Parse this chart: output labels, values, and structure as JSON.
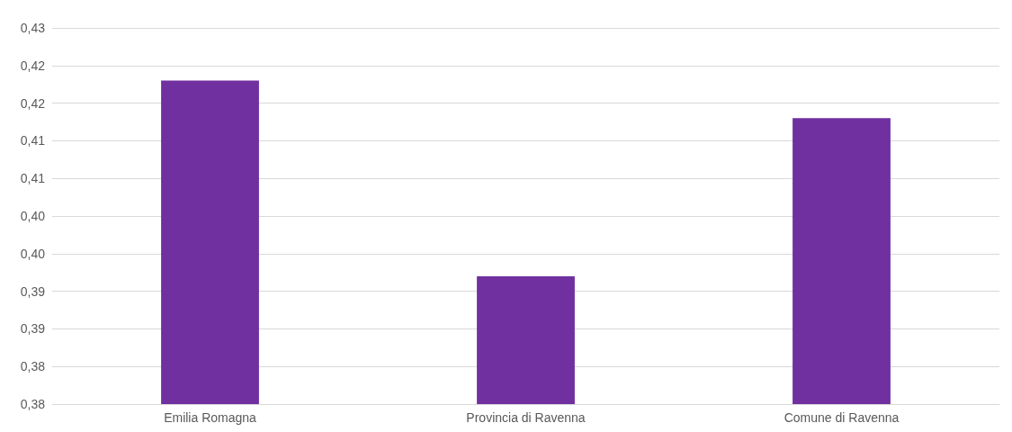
{
  "chart_data": {
    "type": "bar",
    "categories": [
      "Emilia Romagna",
      "Provincia di Ravenna",
      "Comune di Ravenna"
    ],
    "values": [
      0.418,
      0.392,
      0.413
    ],
    "color": "#7030a0",
    "ylim": [
      0.375,
      0.425
    ],
    "yticks": [
      {
        "value": 0.375,
        "label": "0,38"
      },
      {
        "value": 0.38,
        "label": "0,38"
      },
      {
        "value": 0.385,
        "label": "0,39"
      },
      {
        "value": 0.39,
        "label": "0,39"
      },
      {
        "value": 0.395,
        "label": "0,40"
      },
      {
        "value": 0.4,
        "label": "0,40"
      },
      {
        "value": 0.405,
        "label": "0,41"
      },
      {
        "value": 0.41,
        "label": "0,41"
      },
      {
        "value": 0.415,
        "label": "0,42"
      },
      {
        "value": 0.42,
        "label": "0,42"
      },
      {
        "value": 0.425,
        "label": "0,43"
      }
    ],
    "grid": "y"
  }
}
